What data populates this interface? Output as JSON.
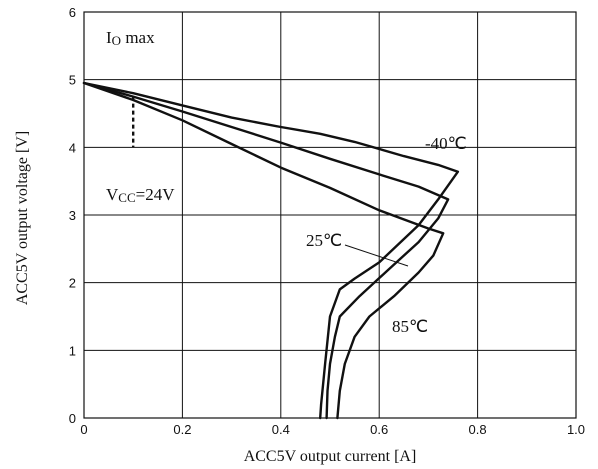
{
  "chart_data": {
    "type": "line",
    "xlabel": "ACC5V output current [A]",
    "ylabel": "ACC5V output voltage [V]",
    "xlim": [
      0,
      1.0
    ],
    "ylim": [
      0,
      6
    ],
    "x_ticks": [
      "0",
      "0.2",
      "0.4",
      "0.6",
      "0.8",
      "1.0"
    ],
    "y_ticks": [
      "0",
      "1",
      "2",
      "3",
      "4",
      "5",
      "6"
    ],
    "grid": true,
    "series": [
      {
        "name": "-40℃",
        "points": [
          [
            0,
            4.95
          ],
          [
            0.1,
            4.8
          ],
          [
            0.2,
            4.62
          ],
          [
            0.3,
            4.44
          ],
          [
            0.4,
            4.3
          ],
          [
            0.48,
            4.2
          ],
          [
            0.55,
            4.08
          ],
          [
            0.65,
            3.87
          ],
          [
            0.72,
            3.74
          ],
          [
            0.76,
            3.64
          ],
          [
            0.72,
            3.23
          ],
          [
            0.68,
            2.85
          ],
          [
            0.6,
            2.3
          ],
          [
            0.55,
            2.06
          ],
          [
            0.52,
            1.9
          ],
          [
            0.5,
            1.5
          ],
          [
            0.49,
            0.8
          ],
          [
            0.482,
            0.2
          ],
          [
            0.48,
            0
          ]
        ]
      },
      {
        "name": "25℃",
        "points": [
          [
            0,
            4.95
          ],
          [
            0.1,
            4.75
          ],
          [
            0.2,
            4.53
          ],
          [
            0.3,
            4.3
          ],
          [
            0.4,
            4.07
          ],
          [
            0.5,
            3.83
          ],
          [
            0.6,
            3.6
          ],
          [
            0.68,
            3.42
          ],
          [
            0.74,
            3.23
          ],
          [
            0.72,
            2.95
          ],
          [
            0.68,
            2.6
          ],
          [
            0.62,
            2.2
          ],
          [
            0.56,
            1.8
          ],
          [
            0.52,
            1.5
          ],
          [
            0.51,
            1.2
          ],
          [
            0.5,
            0.8
          ],
          [
            0.495,
            0.4
          ],
          [
            0.493,
            0
          ]
        ]
      },
      {
        "name": "85℃",
        "points": [
          [
            0,
            4.95
          ],
          [
            0.1,
            4.7
          ],
          [
            0.2,
            4.4
          ],
          [
            0.3,
            4.05
          ],
          [
            0.4,
            3.7
          ],
          [
            0.5,
            3.4
          ],
          [
            0.6,
            3.07
          ],
          [
            0.7,
            2.8
          ],
          [
            0.73,
            2.73
          ],
          [
            0.71,
            2.4
          ],
          [
            0.68,
            2.15
          ],
          [
            0.63,
            1.8
          ],
          [
            0.58,
            1.5
          ],
          [
            0.55,
            1.2
          ],
          [
            0.53,
            0.8
          ],
          [
            0.52,
            0.4
          ],
          [
            0.515,
            0
          ]
        ]
      }
    ],
    "annotations": {
      "io_max_text": "IO max",
      "io_max_x": 0.1,
      "io_max_ylim": [
        4.0,
        4.75
      ],
      "vcc_text": "VCC=24V",
      "label_m40": "-40℃",
      "label_25": "25℃",
      "label_85": "85℃"
    }
  }
}
